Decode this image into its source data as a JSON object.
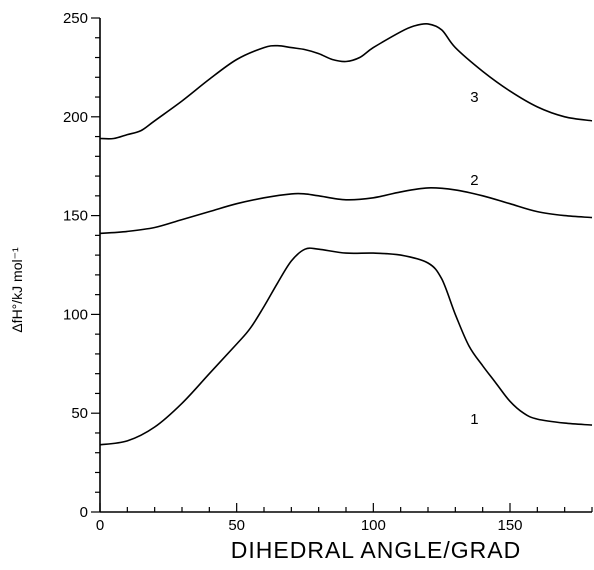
{
  "chart_data": {
    "type": "line",
    "title": "",
    "xlabel": "DIHEDRAL ANGLE/GRAD",
    "ylabel": "ΔfH°/kJ mol⁻¹",
    "xlim": [
      0,
      180
    ],
    "ylim": [
      0,
      250
    ],
    "x_ticks": [
      0,
      50,
      100,
      150
    ],
    "y_ticks": [
      0,
      50,
      100,
      150,
      200,
      250
    ],
    "grid": false,
    "legend": "none",
    "series": [
      {
        "label": "1",
        "label_at": [
          137,
          47
        ],
        "points": [
          [
            0,
            34
          ],
          [
            10,
            36
          ],
          [
            20,
            43
          ],
          [
            30,
            55
          ],
          [
            40,
            70
          ],
          [
            50,
            85
          ],
          [
            55,
            93
          ],
          [
            60,
            104
          ],
          [
            65,
            116
          ],
          [
            70,
            127
          ],
          [
            75,
            133
          ],
          [
            80,
            133
          ],
          [
            90,
            131
          ],
          [
            100,
            131
          ],
          [
            110,
            130
          ],
          [
            120,
            126
          ],
          [
            125,
            118
          ],
          [
            130,
            100
          ],
          [
            135,
            84
          ],
          [
            140,
            74
          ],
          [
            145,
            65
          ],
          [
            150,
            56
          ],
          [
            155,
            50
          ],
          [
            160,
            47
          ],
          [
            170,
            45
          ],
          [
            180,
            44
          ]
        ]
      },
      {
        "label": "2",
        "label_at": [
          137,
          168
        ],
        "points": [
          [
            0,
            141
          ],
          [
            10,
            142
          ],
          [
            20,
            144
          ],
          [
            30,
            148
          ],
          [
            40,
            152
          ],
          [
            50,
            156
          ],
          [
            60,
            159
          ],
          [
            70,
            161
          ],
          [
            75,
            161
          ],
          [
            80,
            160
          ],
          [
            90,
            158
          ],
          [
            100,
            159
          ],
          [
            110,
            162
          ],
          [
            120,
            164
          ],
          [
            130,
            163
          ],
          [
            140,
            160
          ],
          [
            150,
            156
          ],
          [
            160,
            152
          ],
          [
            170,
            150
          ],
          [
            180,
            149
          ]
        ]
      },
      {
        "label": "3",
        "label_at": [
          137,
          210
        ],
        "points": [
          [
            0,
            189
          ],
          [
            5,
            189
          ],
          [
            10,
            191
          ],
          [
            15,
            193
          ],
          [
            20,
            198
          ],
          [
            30,
            208
          ],
          [
            40,
            219
          ],
          [
            50,
            229
          ],
          [
            60,
            235
          ],
          [
            65,
            236
          ],
          [
            70,
            235
          ],
          [
            75,
            234
          ],
          [
            80,
            232
          ],
          [
            85,
            229
          ],
          [
            90,
            228
          ],
          [
            95,
            230
          ],
          [
            100,
            235
          ],
          [
            110,
            243
          ],
          [
            115,
            246
          ],
          [
            120,
            247
          ],
          [
            125,
            244
          ],
          [
            130,
            235
          ],
          [
            140,
            223
          ],
          [
            150,
            213
          ],
          [
            160,
            205
          ],
          [
            170,
            200
          ],
          [
            180,
            198
          ]
        ]
      }
    ]
  }
}
